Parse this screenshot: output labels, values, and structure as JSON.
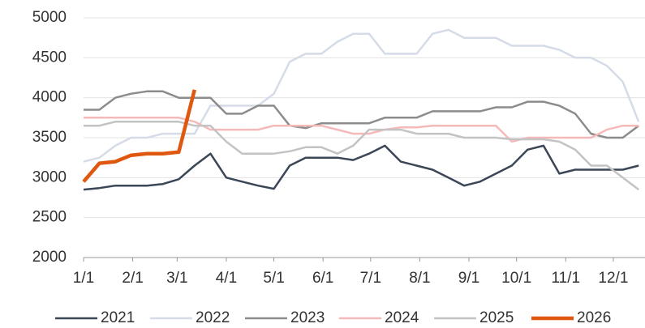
{
  "chart_data": {
    "type": "line",
    "x": [
      0,
      10,
      20,
      30,
      40,
      50,
      60,
      70,
      80,
      90,
      100,
      110,
      120,
      130,
      140,
      150,
      160,
      170,
      180,
      190,
      200,
      210,
      220,
      230,
      240,
      250,
      260,
      270,
      280,
      290,
      300,
      310,
      320,
      330,
      340,
      350
    ],
    "xlim": [
      0,
      354
    ],
    "xticks": [
      {
        "value": 0,
        "label": "1/1"
      },
      {
        "value": 31,
        "label": "2/1"
      },
      {
        "value": 59,
        "label": "3/1"
      },
      {
        "value": 90,
        "label": "4/1"
      },
      {
        "value": 120,
        "label": "5/1"
      },
      {
        "value": 151,
        "label": "6/1"
      },
      {
        "value": 181,
        "label": "7/1"
      },
      {
        "value": 212,
        "label": "8/1"
      },
      {
        "value": 243,
        "label": "9/1"
      },
      {
        "value": 273,
        "label": "10/1"
      },
      {
        "value": 304,
        "label": "11/1"
      },
      {
        "value": 334,
        "label": "12/1"
      }
    ],
    "ylim": [
      2000,
      5000
    ],
    "yticks": [
      2000,
      2500,
      3000,
      3500,
      4000,
      4500,
      5000
    ],
    "grid": true,
    "legend": "bottom",
    "series": [
      {
        "name": "2021",
        "color": "#3b4657",
        "width": 2.5,
        "values": [
          2850,
          2870,
          2900,
          2900,
          2900,
          2920,
          2980,
          3150,
          3300,
          3000,
          2950,
          2900,
          2860,
          3150,
          3250,
          3250,
          3250,
          3220,
          3300,
          3400,
          3200,
          3150,
          3100,
          3000,
          2900,
          2950,
          3050,
          3150,
          3350,
          3400,
          3050,
          3100,
          3100,
          3100,
          3100,
          3150
        ]
      },
      {
        "name": "2022",
        "color": "#d5dbe7",
        "width": 2.5,
        "values": [
          3200,
          3250,
          3400,
          3500,
          3500,
          3550,
          3550,
          3550,
          3900,
          3900,
          3900,
          3900,
          4050,
          4450,
          4550,
          4550,
          4700,
          4800,
          4800,
          4550,
          4550,
          4550,
          4800,
          4850,
          4750,
          4750,
          4750,
          4650,
          4650,
          4650,
          4600,
          4500,
          4500,
          4400,
          4200,
          3700
        ]
      },
      {
        "name": "2023",
        "color": "#8c8c8c",
        "width": 2.5,
        "values": [
          3850,
          3850,
          4000,
          4050,
          4080,
          4080,
          4000,
          4000,
          4000,
          3800,
          3800,
          3900,
          3900,
          3650,
          3620,
          3680,
          3680,
          3680,
          3680,
          3750,
          3750,
          3750,
          3830,
          3830,
          3830,
          3830,
          3880,
          3880,
          3950,
          3950,
          3900,
          3800,
          3550,
          3500,
          3500,
          3650
        ]
      },
      {
        "name": "2024",
        "color": "#f5b9b9",
        "width": 2.5,
        "values": [
          3750,
          3750,
          3750,
          3750,
          3750,
          3750,
          3750,
          3700,
          3600,
          3600,
          3600,
          3600,
          3650,
          3650,
          3650,
          3650,
          3600,
          3550,
          3550,
          3600,
          3630,
          3630,
          3650,
          3650,
          3650,
          3650,
          3650,
          3450,
          3500,
          3500,
          3500,
          3500,
          3500,
          3600,
          3650,
          3650
        ]
      },
      {
        "name": "2025",
        "color": "#c3c3c3",
        "width": 2.5,
        "values": [
          3650,
          3650,
          3700,
          3700,
          3700,
          3700,
          3700,
          3650,
          3650,
          3450,
          3300,
          3300,
          3300,
          3330,
          3380,
          3380,
          3300,
          3400,
          3600,
          3600,
          3600,
          3550,
          3550,
          3550,
          3500,
          3500,
          3500,
          3480,
          3480,
          3480,
          3450,
          3350,
          3150,
          3150,
          3000,
          2850
        ]
      },
      {
        "name": "2026",
        "color": "#e0580f",
        "width": 4.5,
        "values": [
          2950,
          3180,
          3200,
          3280,
          3300,
          3300,
          3320,
          4100,
          null,
          null,
          null,
          null,
          null,
          null,
          null,
          null,
          null,
          null,
          null,
          null,
          null,
          null,
          null,
          null,
          null,
          null,
          null,
          null,
          null,
          null,
          null,
          null,
          null,
          null,
          null,
          null
        ]
      }
    ]
  }
}
